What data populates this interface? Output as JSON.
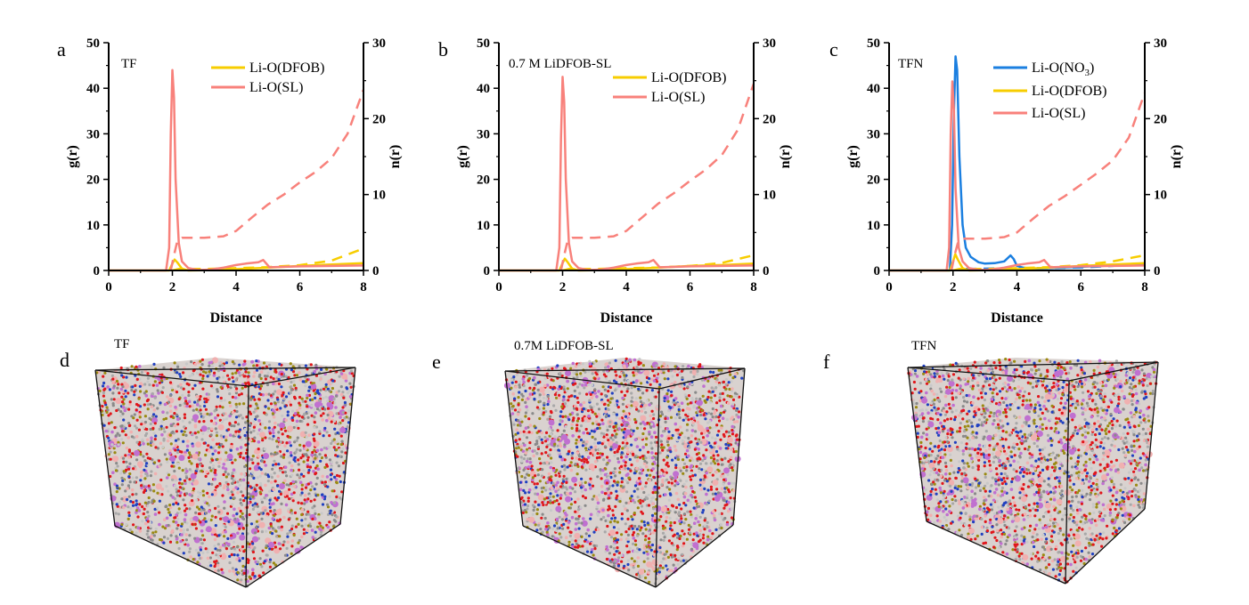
{
  "colors": {
    "SL": "#f8817b",
    "DFOB": "#f7cd00",
    "NO3": "#1b7fe0"
  },
  "boxes": [
    {
      "panel": "d",
      "label": "TF"
    },
    {
      "panel": "e",
      "label": "0.7M LiDFOB-SL"
    },
    {
      "panel": "f",
      "label": "TFN"
    }
  ],
  "chart_data": [
    {
      "type": "line",
      "panel": "a",
      "inset_label": "TF",
      "xlabel": "Distance",
      "ylabel": "g(r)",
      "y2label": "n(r)",
      "xlim": [
        0,
        8
      ],
      "ylim": [
        0,
        50
      ],
      "y2lim": [
        0,
        30
      ],
      "xticks": [
        "0",
        "2",
        "4",
        "6",
        "8"
      ],
      "yticks": [
        "0",
        "10",
        "20",
        "30",
        "40",
        "50"
      ],
      "y2ticks": [
        "0",
        "10",
        "20",
        "30"
      ],
      "legend": [
        "Li-O(DFOB)",
        "Li-O(SL)"
      ],
      "legend_placement": "top-right",
      "series": [
        {
          "name": "Li-O(DFOB)",
          "key": "DFOB",
          "g": [
            [
              0,
              0
            ],
            [
              1.9,
              0
            ],
            [
              2.0,
              1.5
            ],
            [
              2.07,
              2.4
            ],
            [
              2.15,
              1.8
            ],
            [
              2.3,
              0.4
            ],
            [
              2.5,
              0
            ],
            [
              3,
              0.05
            ],
            [
              4,
              0.3
            ],
            [
              5,
              0.6
            ],
            [
              6,
              1.0
            ],
            [
              7,
              1.3
            ],
            [
              8,
              1.6
            ]
          ],
          "n": [
            [
              2,
              0
            ],
            [
              2.2,
              0.2
            ],
            [
              3,
              0.2
            ],
            [
              4,
              0.3
            ],
            [
              5,
              0.45
            ],
            [
              6,
              0.7
            ],
            [
              7,
              1.3
            ],
            [
              8,
              2.9
            ]
          ]
        },
        {
          "name": "Li-O(SL)",
          "key": "SL",
          "g": [
            [
              0,
              0
            ],
            [
              1.8,
              0
            ],
            [
              1.9,
              5
            ],
            [
              1.95,
              30
            ],
            [
              2.0,
              44
            ],
            [
              2.05,
              38
            ],
            [
              2.1,
              20
            ],
            [
              2.2,
              6
            ],
            [
              2.3,
              2
            ],
            [
              2.5,
              0.5
            ],
            [
              2.8,
              0.1
            ],
            [
              3.2,
              0.2
            ],
            [
              3.6,
              0.6
            ],
            [
              4.0,
              1.2
            ],
            [
              4.3,
              1.5
            ],
            [
              4.7,
              1.8
            ],
            [
              4.85,
              2.3
            ],
            [
              4.95,
              1.5
            ],
            [
              5.05,
              0.7
            ],
            [
              6,
              0.9
            ],
            [
              7,
              1.0
            ],
            [
              8,
              1.1
            ]
          ],
          "n": [
            [
              1.95,
              0
            ],
            [
              2.05,
              2
            ],
            [
              2.15,
              3.8
            ],
            [
              2.3,
              4.3
            ],
            [
              3,
              4.3
            ],
            [
              3.6,
              4.5
            ],
            [
              4,
              5.2
            ],
            [
              4.5,
              7
            ],
            [
              5,
              8.7
            ],
            [
              5.5,
              10
            ],
            [
              6,
              11.6
            ],
            [
              6.5,
              13
            ],
            [
              7,
              14.8
            ],
            [
              7.5,
              18
            ],
            [
              8,
              23.8
            ]
          ]
        }
      ]
    },
    {
      "type": "line",
      "panel": "b",
      "inset_label": "0.7 M LiDFOB-SL",
      "xlabel": "Distance",
      "ylabel": "g(r)",
      "y2label": "n(r)",
      "xlim": [
        0,
        8
      ],
      "ylim": [
        0,
        50
      ],
      "y2lim": [
        0,
        30
      ],
      "xticks": [
        "0",
        "2",
        "4",
        "6",
        "8"
      ],
      "yticks": [
        "0",
        "10",
        "20",
        "30",
        "40",
        "50"
      ],
      "y2ticks": [
        "0",
        "10",
        "20",
        "30"
      ],
      "legend": [
        "Li-O(DFOB)",
        "Li-O(SL)"
      ],
      "legend_placement": "top-right",
      "series": [
        {
          "name": "Li-O(DFOB)",
          "key": "DFOB",
          "g": [
            [
              0,
              0
            ],
            [
              1.9,
              0
            ],
            [
              2.0,
              1.6
            ],
            [
              2.07,
              2.6
            ],
            [
              2.15,
              1.9
            ],
            [
              2.3,
              0.4
            ],
            [
              2.5,
              0
            ],
            [
              3,
              0.05
            ],
            [
              4,
              0.3
            ],
            [
              5,
              0.6
            ],
            [
              6,
              1.0
            ],
            [
              7,
              1.2
            ],
            [
              8,
              1.5
            ]
          ],
          "n": [
            [
              2,
              0
            ],
            [
              2.2,
              0.2
            ],
            [
              3,
              0.2
            ],
            [
              4,
              0.3
            ],
            [
              5,
              0.4
            ],
            [
              6,
              0.6
            ],
            [
              7,
              1.0
            ],
            [
              8,
              2.0
            ]
          ]
        },
        {
          "name": "Li-O(SL)",
          "key": "SL",
          "g": [
            [
              0,
              0
            ],
            [
              1.8,
              0
            ],
            [
              1.9,
              5
            ],
            [
              1.95,
              29
            ],
            [
              2.0,
              42.5
            ],
            [
              2.05,
              37
            ],
            [
              2.1,
              20
            ],
            [
              2.2,
              6
            ],
            [
              2.3,
              2
            ],
            [
              2.5,
              0.5
            ],
            [
              2.8,
              0.1
            ],
            [
              3.2,
              0.2
            ],
            [
              3.6,
              0.6
            ],
            [
              4.0,
              1.2
            ],
            [
              4.3,
              1.5
            ],
            [
              4.7,
              1.8
            ],
            [
              4.85,
              2.3
            ],
            [
              4.95,
              1.5
            ],
            [
              5.05,
              0.7
            ],
            [
              6,
              0.9
            ],
            [
              7,
              1.0
            ],
            [
              8,
              1.1
            ]
          ],
          "n": [
            [
              1.95,
              0
            ],
            [
              2.05,
              2
            ],
            [
              2.15,
              3.8
            ],
            [
              2.3,
              4.3
            ],
            [
              3,
              4.3
            ],
            [
              3.6,
              4.5
            ],
            [
              4,
              5.2
            ],
            [
              4.5,
              7
            ],
            [
              5,
              8.8
            ],
            [
              5.5,
              10.2
            ],
            [
              6,
              11.8
            ],
            [
              6.5,
              13.3
            ],
            [
              7,
              15.2
            ],
            [
              7.5,
              18.5
            ],
            [
              8,
              24.6
            ]
          ]
        }
      ]
    },
    {
      "type": "line",
      "panel": "c",
      "inset_label": "TFN",
      "xlabel": "Distance",
      "ylabel": "g(r)",
      "y2label": "n(r)",
      "xlim": [
        0,
        8
      ],
      "ylim": [
        0,
        50
      ],
      "y2lim": [
        0,
        30
      ],
      "xticks": [
        "0",
        "2",
        "4",
        "6",
        "8"
      ],
      "yticks": [
        "0",
        "10",
        "20",
        "30",
        "40",
        "50"
      ],
      "y2ticks": [
        "0",
        "10",
        "20",
        "30"
      ],
      "legend": [
        "Li-O(NO3)",
        "Li-O(DFOB)",
        "Li-O(SL)"
      ],
      "legend_placement": "top-right",
      "series": [
        {
          "name": "Li-O(NO3)",
          "key": "NO3",
          "g": [
            [
              0,
              0
            ],
            [
              1.9,
              0
            ],
            [
              1.97,
              10
            ],
            [
              2.03,
              35
            ],
            [
              2.08,
              47
            ],
            [
              2.13,
              44
            ],
            [
              2.2,
              25
            ],
            [
              2.3,
              10
            ],
            [
              2.4,
              5
            ],
            [
              2.55,
              3
            ],
            [
              2.8,
              1.8
            ],
            [
              3,
              1.5
            ],
            [
              3.3,
              1.6
            ],
            [
              3.6,
              2.0
            ],
            [
              3.8,
              3.3
            ],
            [
              3.9,
              2.5
            ],
            [
              4.0,
              1.0
            ],
            [
              4.2,
              0.6
            ],
            [
              4.5,
              0.4
            ],
            [
              5,
              0.5
            ],
            [
              6,
              0.8
            ],
            [
              7,
              1.1
            ],
            [
              8,
              1.3
            ]
          ],
          "n": [
            [
              2.4,
              0.2
            ],
            [
              4,
              0.3
            ],
            [
              5,
              0.3
            ],
            [
              6,
              0.4
            ],
            [
              7,
              0.6
            ],
            [
              8,
              0.9
            ]
          ]
        },
        {
          "name": "Li-O(DFOB)",
          "key": "DFOB",
          "g": [
            [
              0,
              0
            ],
            [
              1.9,
              0
            ],
            [
              2.0,
              2
            ],
            [
              2.07,
              3.6
            ],
            [
              2.15,
              2.4
            ],
            [
              2.3,
              0.5
            ],
            [
              2.5,
              0
            ],
            [
              3,
              0.05
            ],
            [
              4,
              0.3
            ],
            [
              5,
              0.6
            ],
            [
              6,
              1.0
            ],
            [
              7,
              1.3
            ],
            [
              8,
              1.6
            ]
          ],
          "n": [
            [
              2,
              0
            ],
            [
              2.2,
              0.2
            ],
            [
              3,
              0.2
            ],
            [
              4,
              0.3
            ],
            [
              5,
              0.45
            ],
            [
              6,
              0.7
            ],
            [
              7,
              1.2
            ],
            [
              8,
              2.0
            ]
          ]
        },
        {
          "name": "Li-O(SL)",
          "key": "SL",
          "g": [
            [
              0,
              0
            ],
            [
              1.8,
              0
            ],
            [
              1.88,
              5
            ],
            [
              1.93,
              30
            ],
            [
              1.98,
              41.5
            ],
            [
              2.03,
              35
            ],
            [
              2.08,
              18
            ],
            [
              2.18,
              5
            ],
            [
              2.3,
              2
            ],
            [
              2.5,
              0.5
            ],
            [
              2.8,
              0.1
            ],
            [
              3.2,
              0.2
            ],
            [
              3.6,
              0.6
            ],
            [
              4.0,
              1.2
            ],
            [
              4.3,
              1.5
            ],
            [
              4.7,
              1.8
            ],
            [
              4.85,
              2.3
            ],
            [
              4.95,
              1.5
            ],
            [
              5.05,
              0.7
            ],
            [
              6,
              0.9
            ],
            [
              7,
              1.0
            ],
            [
              8,
              1.1
            ]
          ],
          "n": [
            [
              1.95,
              0
            ],
            [
              2.05,
              2
            ],
            [
              2.15,
              3.6
            ],
            [
              2.3,
              4.2
            ],
            [
              3,
              4.2
            ],
            [
              3.6,
              4.4
            ],
            [
              4,
              5.0
            ],
            [
              4.5,
              6.8
            ],
            [
              5,
              8.5
            ],
            [
              5.5,
              9.8
            ],
            [
              6,
              11.3
            ],
            [
              6.5,
              12.8
            ],
            [
              7,
              14.5
            ],
            [
              7.5,
              17.5
            ],
            [
              8,
              23.4
            ]
          ]
        }
      ]
    }
  ]
}
